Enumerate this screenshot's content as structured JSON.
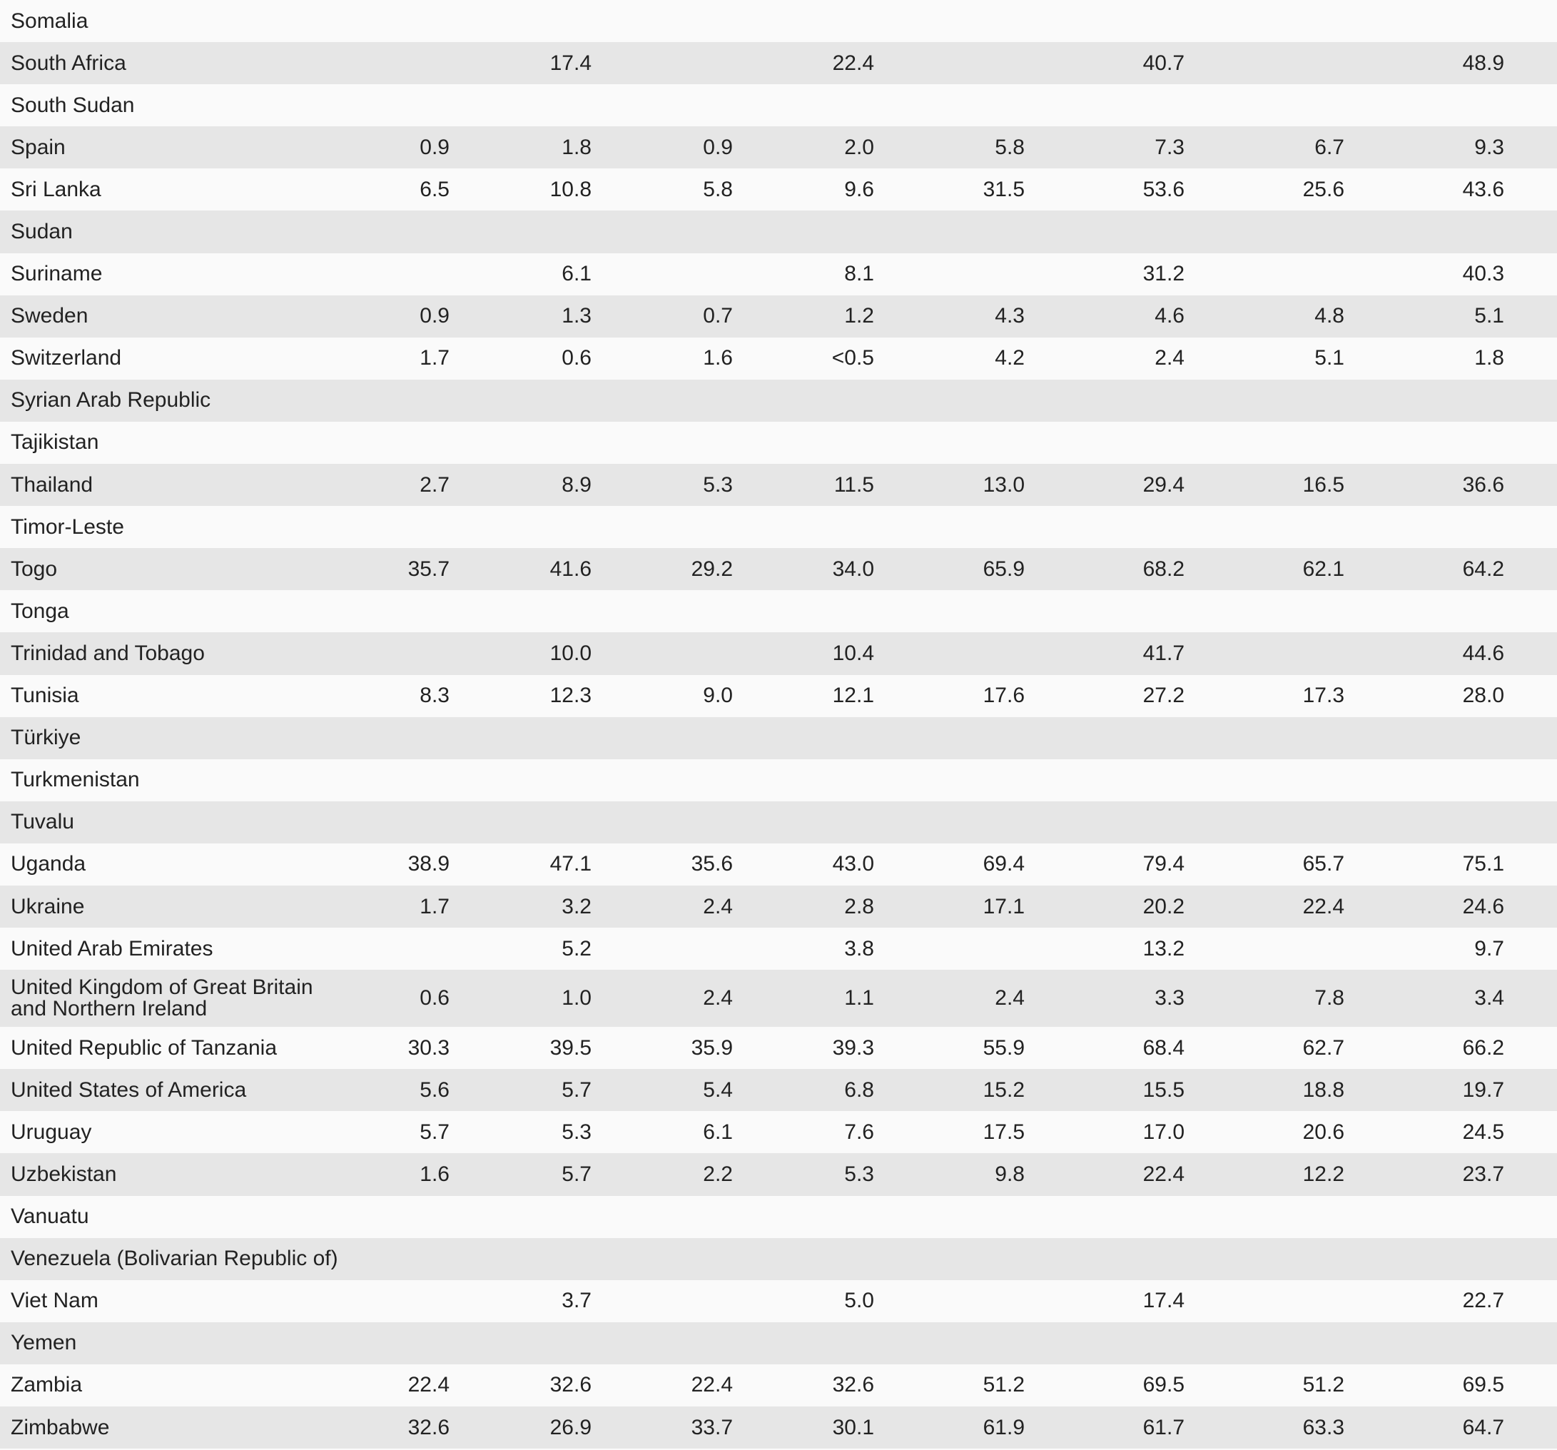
{
  "table": {
    "rows": [
      {
        "country": "Somalia"
      },
      {
        "country": "South Africa",
        "values": [
          null,
          "17.4",
          null,
          "22.4",
          null,
          "40.7",
          null,
          "48.9"
        ]
      },
      {
        "country": "South Sudan"
      },
      {
        "country": "Spain",
        "values": [
          "0.9",
          "1.8",
          "0.9",
          "2.0",
          "5.8",
          "7.3",
          "6.7",
          "9.3"
        ]
      },
      {
        "country": "Sri Lanka",
        "values": [
          "6.5",
          "10.8",
          "5.8",
          "9.6",
          "31.5",
          "53.6",
          "25.6",
          "43.6"
        ]
      },
      {
        "country": "Sudan"
      },
      {
        "country": "Suriname",
        "values": [
          null,
          "6.1",
          null,
          "8.1",
          null,
          "31.2",
          null,
          "40.3"
        ]
      },
      {
        "country": "Sweden",
        "values": [
          "0.9",
          "1.3",
          "0.7",
          "1.2",
          "4.3",
          "4.6",
          "4.8",
          "5.1"
        ]
      },
      {
        "country": "Switzerland",
        "values": [
          "1.7",
          "0.6",
          "1.6",
          "<0.5",
          "4.2",
          "2.4",
          "5.1",
          "1.8"
        ]
      },
      {
        "country": "Syrian Arab Republic"
      },
      {
        "country": "Tajikistan"
      },
      {
        "country": "Thailand",
        "values": [
          "2.7",
          "8.9",
          "5.3",
          "11.5",
          "13.0",
          "29.4",
          "16.5",
          "36.6"
        ]
      },
      {
        "country": "Timor-Leste"
      },
      {
        "country": "Togo",
        "values": [
          "35.7",
          "41.6",
          "29.2",
          "34.0",
          "65.9",
          "68.2",
          "62.1",
          "64.2"
        ]
      },
      {
        "country": "Tonga"
      },
      {
        "country": "Trinidad and Tobago",
        "values": [
          null,
          "10.0",
          null,
          "10.4",
          null,
          "41.7",
          null,
          "44.6"
        ]
      },
      {
        "country": "Tunisia",
        "values": [
          "8.3",
          "12.3",
          "9.0",
          "12.1",
          "17.6",
          "27.2",
          "17.3",
          "28.0"
        ]
      },
      {
        "country": "Türkiye"
      },
      {
        "country": "Turkmenistan"
      },
      {
        "country": "Tuvalu"
      },
      {
        "country": "Uganda",
        "values": [
          "38.9",
          "47.1",
          "35.6",
          "43.0",
          "69.4",
          "79.4",
          "65.7",
          "75.1"
        ]
      },
      {
        "country": "Ukraine",
        "values": [
          "1.7",
          "3.2",
          "2.4",
          "2.8",
          "17.1",
          "20.2",
          "22.4",
          "24.6"
        ]
      },
      {
        "country": "United Arab Emirates",
        "values": [
          null,
          "5.2",
          null,
          "3.8",
          null,
          "13.2",
          null,
          "9.7"
        ]
      },
      {
        "country": "United Kingdom of Great Britain and Northern Ireland",
        "values": [
          "0.6",
          "1.0",
          "2.4",
          "1.1",
          "2.4",
          "3.3",
          "7.8",
          "3.4"
        ]
      },
      {
        "country": "United Republic of Tanzania",
        "values": [
          "30.3",
          "39.5",
          "35.9",
          "39.3",
          "55.9",
          "68.4",
          "62.7",
          "66.2"
        ]
      },
      {
        "country": "United States of America",
        "values": [
          "5.6",
          "5.7",
          "5.4",
          "6.8",
          "15.2",
          "15.5",
          "18.8",
          "19.7"
        ]
      },
      {
        "country": "Uruguay",
        "values": [
          "5.7",
          "5.3",
          "6.1",
          "7.6",
          "17.5",
          "17.0",
          "20.6",
          "24.5"
        ]
      },
      {
        "country": "Uzbekistan",
        "values": [
          "1.6",
          "5.7",
          "2.2",
          "5.3",
          "9.8",
          "22.4",
          "12.2",
          "23.7"
        ]
      },
      {
        "country": "Vanuatu"
      },
      {
        "country": "Venezuela (Bolivarian Republic of)"
      },
      {
        "country": "Viet Nam",
        "values": [
          null,
          "3.7",
          null,
          "5.0",
          null,
          "17.4",
          null,
          "22.7"
        ]
      },
      {
        "country": "Yemen"
      },
      {
        "country": "Zambia",
        "values": [
          "22.4",
          "32.6",
          "22.4",
          "32.6",
          "51.2",
          "69.5",
          "51.2",
          "69.5"
        ]
      },
      {
        "country": "Zimbabwe",
        "values": [
          "32.6",
          "26.9",
          "33.7",
          "30.1",
          "61.9",
          "61.7",
          "63.3",
          "64.7"
        ]
      }
    ]
  }
}
